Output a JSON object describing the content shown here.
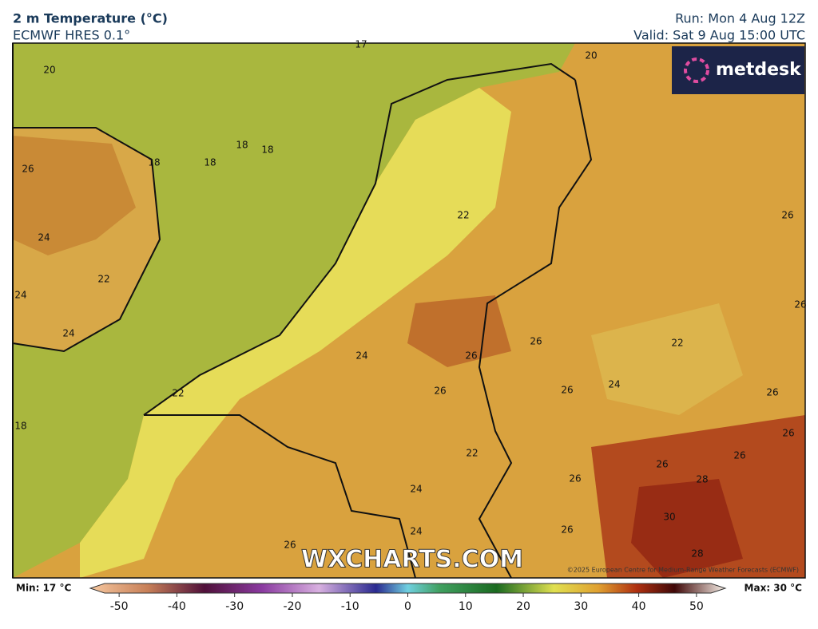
{
  "header": {
    "title": "2 m Temperature (°C)",
    "subtitle": "ECMWF HRES 0.1°",
    "run": "Run: Mon 4 Aug 12Z",
    "valid": "Valid: Sat 9 Aug 15:00 UTC"
  },
  "logo": "metdesk",
  "watermark": "WXCHARTS.COM",
  "copyright": "©2025 European Centre for Medium-Range Weather Forecasts (ECMWF)",
  "contour_labels": [
    20,
    18,
    18,
    18,
    18,
    26,
    24,
    22,
    24,
    24,
    18,
    22,
    24,
    26,
    26,
    22,
    22,
    24,
    24,
    26,
    26,
    22,
    26,
    24,
    26,
    26,
    26,
    26,
    26,
    26,
    28,
    30,
    28,
    20,
    26,
    26,
    17
  ],
  "colorbar": {
    "min_label": "Min: 17 °C",
    "max_label": "Max: 30 °C",
    "range": [
      -55,
      55
    ],
    "ticks": [
      -50,
      -40,
      -30,
      -20,
      -10,
      0,
      10,
      20,
      30,
      40,
      50
    ]
  }
}
